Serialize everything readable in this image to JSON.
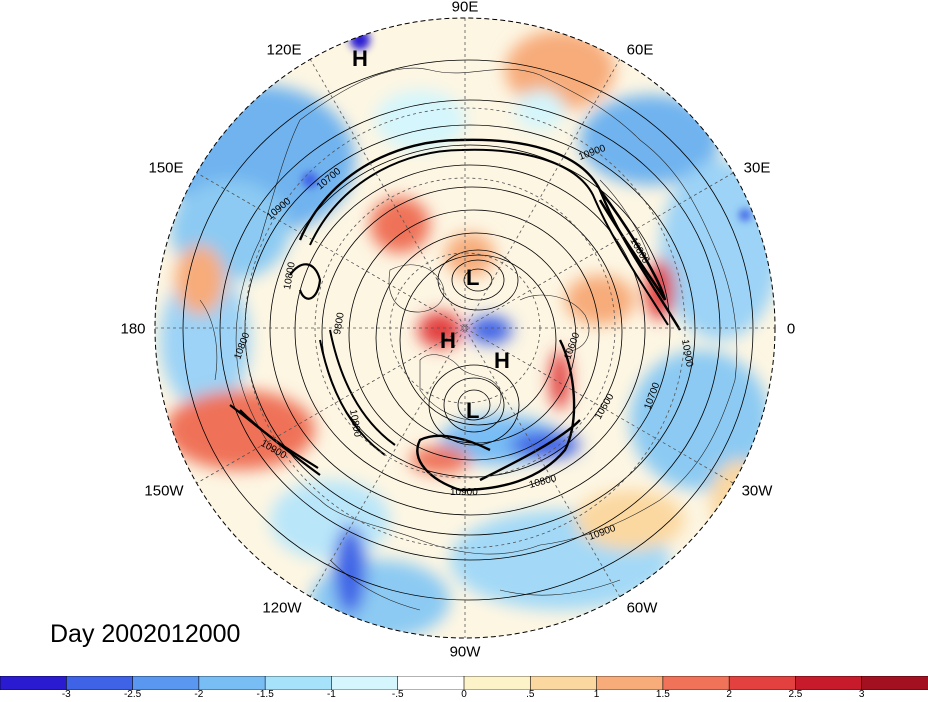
{
  "title": "Day 2002012000",
  "longitude_labels": [
    "90E",
    "60E",
    "30E",
    "0",
    "30W",
    "60W",
    "90W",
    "120W",
    "150W",
    "180",
    "150E",
    "120E"
  ],
  "pressure_centers": [
    "H",
    "L",
    "H",
    "H",
    "L"
  ],
  "contour_labels": [
    "10900",
    "10700",
    "10900",
    "10800",
    "10800",
    "10600",
    "9800",
    "10800",
    "10900",
    "10800",
    "10600",
    "10700",
    "10900",
    "10800",
    "10900",
    "10900"
  ],
  "colorbar": {
    "labels": [
      "-3",
      "-2.5",
      "-2",
      "-1.5",
      "-1",
      "-.5",
      "0",
      ".5",
      "1",
      "1.5",
      "2",
      "2.5",
      "3"
    ],
    "colors": [
      "#2a1bd1",
      "#3f63e6",
      "#5a97f0",
      "#79bdf5",
      "#a6e3fa",
      "#d4f6fc",
      "#ffffff",
      "#fdf3c9",
      "#fbd8a0",
      "#f7ac7a",
      "#ef7259",
      "#e2413f",
      "#c71a2a",
      "#a3101f"
    ]
  }
}
